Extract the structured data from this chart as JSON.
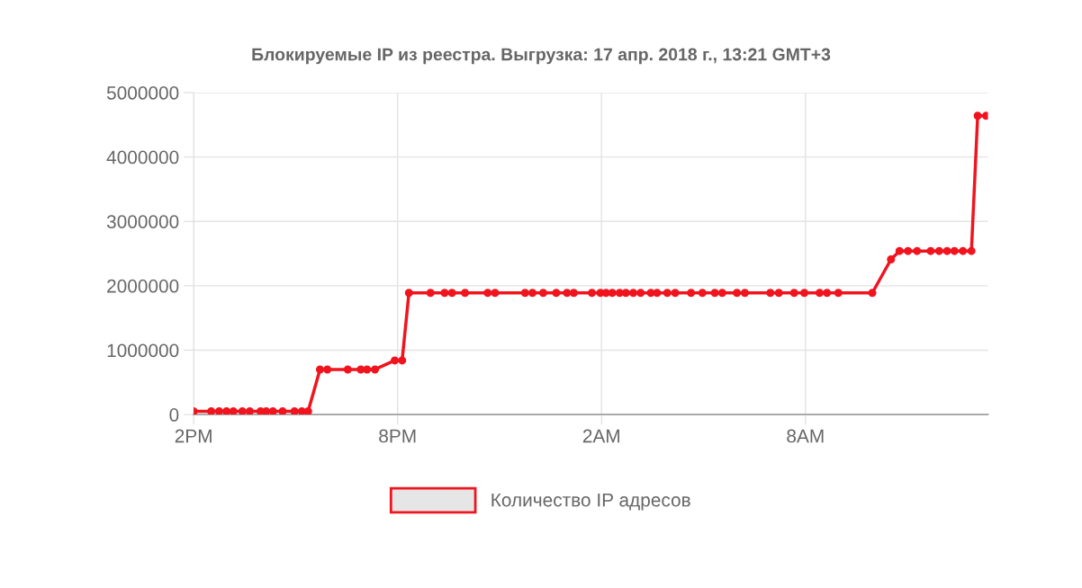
{
  "chart_data": {
    "type": "line",
    "title": "Блокируемые IP из реестра. Выгрузка: 17 апр. 2018 г., 13:21 GMT+3",
    "xlim": [
      "2018-04-16T14:00",
      "2018-04-17T13:22"
    ],
    "xticks": [
      {
        "value": "2018-04-16T14:00",
        "label": "2PM"
      },
      {
        "value": "2018-04-16T20:00",
        "label": "8PM"
      },
      {
        "value": "2018-04-17T02:00",
        "label": "2AM"
      },
      {
        "value": "2018-04-17T08:00",
        "label": "8AM"
      }
    ],
    "ylim": [
      0,
      5000000
    ],
    "yticks": [
      0,
      1000000,
      2000000,
      3000000,
      4000000,
      5000000
    ],
    "grid": true,
    "legend": "bottom",
    "marker": "circle",
    "line_style": "solid",
    "series": [
      {
        "name": "Количество IP адресов",
        "color": "#f0141e",
        "x": [
          "2018-04-16T14:00",
          "2018-04-16T14:31",
          "2018-04-16T14:45",
          "2018-04-16T14:58",
          "2018-04-16T15:10",
          "2018-04-16T15:26",
          "2018-04-16T15:39",
          "2018-04-16T15:58",
          "2018-04-16T16:08",
          "2018-04-16T16:20",
          "2018-04-16T16:37",
          "2018-04-16T16:58",
          "2018-04-16T17:11",
          "2018-04-16T17:22",
          "2018-04-16T17:43",
          "2018-04-16T17:56",
          "2018-04-16T18:32",
          "2018-04-16T18:55",
          "2018-04-16T19:06",
          "2018-04-16T19:20",
          "2018-04-16T19:55",
          "2018-04-16T20:08",
          "2018-04-16T20:20",
          "2018-04-16T20:58",
          "2018-04-16T21:23",
          "2018-04-16T21:36",
          "2018-04-16T21:59",
          "2018-04-16T22:39",
          "2018-04-16T22:52",
          "2018-04-16T23:45",
          "2018-04-16T23:58",
          "2018-04-17T00:17",
          "2018-04-17T00:40",
          "2018-04-17T00:59",
          "2018-04-17T01:11",
          "2018-04-17T01:43",
          "2018-04-17T01:58",
          "2018-04-17T02:08",
          "2018-04-17T02:19",
          "2018-04-17T02:32",
          "2018-04-17T02:43",
          "2018-04-17T02:56",
          "2018-04-17T03:09",
          "2018-04-17T03:27",
          "2018-04-17T03:38",
          "2018-04-17T03:56",
          "2018-04-17T04:10",
          "2018-04-17T04:38",
          "2018-04-17T04:58",
          "2018-04-17T05:20",
          "2018-04-17T05:33",
          "2018-04-17T05:59",
          "2018-04-17T06:13",
          "2018-04-17T06:58",
          "2018-04-17T07:13",
          "2018-04-17T07:40",
          "2018-04-17T07:58",
          "2018-04-17T08:25",
          "2018-04-17T08:38",
          "2018-04-17T08:58",
          "2018-04-17T09:58",
          "2018-04-17T10:31",
          "2018-04-17T10:46",
          "2018-04-17T11:01",
          "2018-04-17T11:17",
          "2018-04-17T11:41",
          "2018-04-17T11:56",
          "2018-04-17T12:10",
          "2018-04-17T12:23",
          "2018-04-17T12:38",
          "2018-04-17T12:53",
          "2018-04-17T13:04",
          "2018-04-17T13:19"
        ],
        "values": [
          50000,
          50000,
          50000,
          50000,
          50000,
          50000,
          50000,
          50000,
          50000,
          50000,
          50000,
          50000,
          50000,
          50000,
          700000,
          700000,
          700000,
          700000,
          700000,
          700000,
          840000,
          840000,
          1890000,
          1890000,
          1890000,
          1890000,
          1890000,
          1890000,
          1890000,
          1890000,
          1890000,
          1890000,
          1890000,
          1890000,
          1890000,
          1890000,
          1890000,
          1890000,
          1890000,
          1890000,
          1890000,
          1890000,
          1890000,
          1890000,
          1890000,
          1890000,
          1890000,
          1890000,
          1890000,
          1890000,
          1890000,
          1890000,
          1890000,
          1890000,
          1890000,
          1890000,
          1890000,
          1890000,
          1890000,
          1890000,
          1890000,
          2410000,
          2540000,
          2540000,
          2540000,
          2540000,
          2540000,
          2540000,
          2540000,
          2540000,
          2540000,
          4640000,
          4640000
        ]
      }
    ]
  }
}
